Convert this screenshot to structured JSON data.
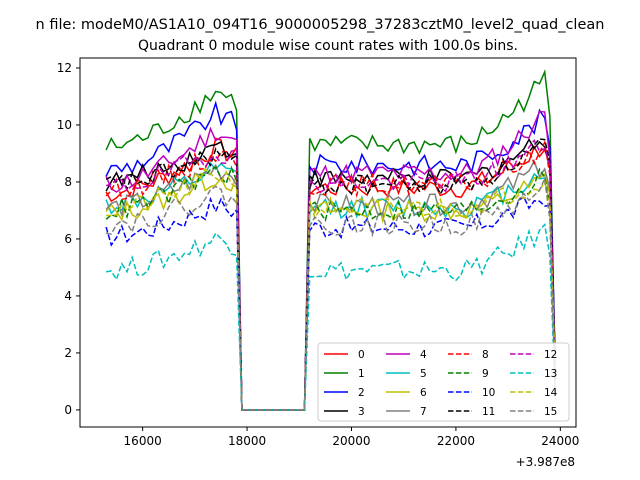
{
  "chart_data": {
    "type": "line",
    "suptitle": "n file: modeM0/AS1A10_094T16_9000005298_37283cztM0_level2_quad_clean",
    "title": "Quadrant 0 module wise count rates with 100.0s bins.",
    "offset_label": "+3.987e8",
    "xlim": [
      14800,
      24300
    ],
    "ylim": [
      -0.6,
      12.35
    ],
    "xticks": [
      16000,
      18000,
      20000,
      22000,
      24000
    ],
    "yticks": [
      0,
      2,
      4,
      6,
      8,
      10,
      12
    ],
    "x_start": 15300,
    "x_step": 100,
    "gap": {
      "from": 17900,
      "to": 19100
    },
    "profile": {
      "rise_end": 17400,
      "segment2_start": 19200,
      "segment2_ramp_start": 22100,
      "peak": 23700
    },
    "grid": false,
    "legend": {
      "position": "lower-right",
      "columns": 4
    },
    "series": [
      {
        "name": "0",
        "color": "#ff0000",
        "dash": "solid",
        "base1": 7.6,
        "peak1": 9.2,
        "base2": 7.8,
        "peak2": 9.3
      },
      {
        "name": "1",
        "color": "#008000",
        "dash": "solid",
        "base1": 9.2,
        "peak1": 11.2,
        "base2": 9.3,
        "peak2": 11.6
      },
      {
        "name": "2",
        "color": "#0000ff",
        "dash": "solid",
        "base1": 8.4,
        "peak1": 10.4,
        "base2": 8.6,
        "peak2": 10.3
      },
      {
        "name": "3",
        "color": "#000000",
        "dash": "solid",
        "base1": 8.0,
        "peak1": 9.3,
        "base2": 8.1,
        "peak2": 9.6
      },
      {
        "name": "4",
        "color": "#bf00bf",
        "dash": "solid",
        "base1": 7.9,
        "peak1": 9.8,
        "base2": 8.3,
        "peak2": 10.4
      },
      {
        "name": "5",
        "color": "#00bfbf",
        "dash": "solid",
        "base1": 7.2,
        "peak1": 8.4,
        "base2": 7.1,
        "peak2": 8.4
      },
      {
        "name": "6",
        "color": "#bfbf00",
        "dash": "solid",
        "base1": 6.9,
        "peak1": 8.2,
        "base2": 7.0,
        "peak2": 8.1
      },
      {
        "name": "7",
        "color": "#808080",
        "dash": "solid",
        "base1": 7.1,
        "peak1": 8.5,
        "base2": 7.2,
        "peak2": 8.6
      },
      {
        "name": "8",
        "color": "#ff0000",
        "dash": "dashed",
        "base1": 7.7,
        "peak1": 9.0,
        "base2": 7.9,
        "peak2": 9.1
      },
      {
        "name": "9",
        "color": "#008000",
        "dash": "dashed",
        "base1": 7.0,
        "peak1": 8.4,
        "base2": 7.0,
        "peak2": 8.2
      },
      {
        "name": "10",
        "color": "#0000ff",
        "dash": "dashed",
        "base1": 6.1,
        "peak1": 7.2,
        "base2": 6.4,
        "peak2": 7.5
      },
      {
        "name": "11",
        "color": "#000000",
        "dash": "dashed",
        "base1": 7.9,
        "peak1": 9.0,
        "base2": 7.9,
        "peak2": 9.4
      },
      {
        "name": "12",
        "color": "#bf00bf",
        "dash": "dashed",
        "base1": 7.8,
        "peak1": 9.1,
        "base2": 8.0,
        "peak2": 9.4
      },
      {
        "name": "13",
        "color": "#00bfbf",
        "dash": "dashed",
        "base1": 4.9,
        "peak1": 6.0,
        "base2": 4.9,
        "peak2": 6.3
      },
      {
        "name": "14",
        "color": "#bfbf00",
        "dash": "dashed",
        "base1": 7.0,
        "peak1": 8.3,
        "base2": 7.1,
        "peak2": 8.1
      },
      {
        "name": "15",
        "color": "#808080",
        "dash": "dashed",
        "base1": 6.5,
        "peak1": 7.6,
        "base2": 6.5,
        "peak2": 7.8
      }
    ]
  }
}
